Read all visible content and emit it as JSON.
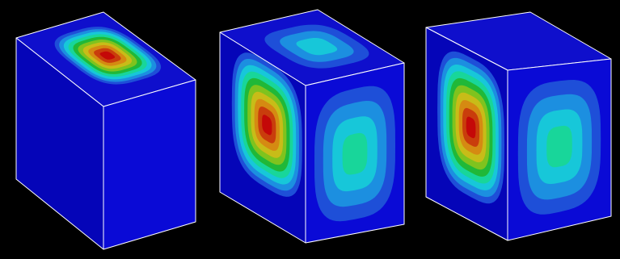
{
  "figure": {
    "background": "#000000",
    "edge_color": "#ffffff",
    "face_base_colors": {
      "top": "#0f0fcc",
      "left": "#0505b8",
      "right": "#0a0ad6"
    },
    "contour_palette": [
      "#1e4fd8",
      "#1c8fe0",
      "#17c7d9",
      "#18d69a",
      "#20b838",
      "#7fc31e",
      "#c8bc18",
      "#d58a12",
      "#c93d0c",
      "#c40808"
    ],
    "blocks": [
      {
        "id": "block-1",
        "faces": [
          {
            "face": "top",
            "peak_level": 10,
            "peak_center": [
              0.56,
              0.47
            ],
            "spread": [
              0.75,
              0.72
            ]
          },
          {
            "face": "left",
            "peak_level": 0
          },
          {
            "face": "right",
            "peak_level": 0
          }
        ]
      },
      {
        "id": "block-2",
        "faces": [
          {
            "face": "top",
            "peak_level": 3,
            "peak_center": [
              0.55,
              0.5
            ],
            "spread": [
              0.72,
              0.68
            ]
          },
          {
            "face": "left",
            "peak_level": 10,
            "peak_center": [
              0.55,
              0.4
            ],
            "spread": [
              0.82,
              0.8
            ]
          },
          {
            "face": "right",
            "peak_level": 4,
            "peak_center": [
              0.5,
              0.5
            ],
            "spread": [
              0.82,
              0.82
            ]
          }
        ]
      },
      {
        "id": "block-3",
        "faces": [
          {
            "face": "top",
            "peak_level": 0
          },
          {
            "face": "left",
            "peak_level": 10,
            "peak_center": [
              0.55,
              0.45
            ],
            "spread": [
              0.82,
              0.82
            ]
          },
          {
            "face": "right",
            "peak_level": 4,
            "peak_center": [
              0.5,
              0.5
            ],
            "spread": [
              0.8,
              0.8
            ]
          }
        ]
      }
    ]
  }
}
